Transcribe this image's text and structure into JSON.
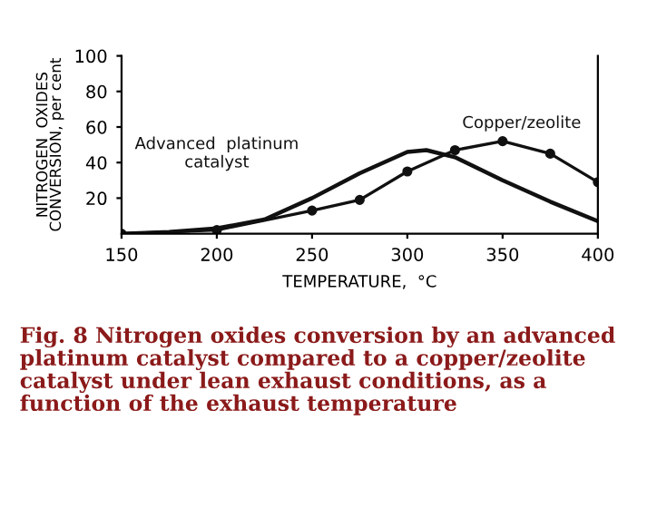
{
  "chart_data": {
    "type": "line",
    "xlabel": "TEMPERATURE,  °C",
    "ylabel": "NITROGEN  OXIDES\nCONVERSION, per cent",
    "xlim": [
      150,
      400
    ],
    "ylim": [
      0,
      100
    ],
    "xticks": [
      150,
      200,
      250,
      300,
      350,
      400
    ],
    "yticks": [
      20,
      40,
      60,
      80,
      100
    ],
    "grid": false,
    "legend": false,
    "series": [
      {
        "name": "Advanced  platinum\ncatalyst",
        "color": "#111111",
        "marker": "none",
        "x": [
          150,
          175,
          200,
          225,
          250,
          275,
          300,
          310,
          325,
          350,
          375,
          400
        ],
        "values": [
          0,
          1,
          3,
          8,
          20,
          34,
          46,
          47,
          43,
          30,
          18,
          7
        ]
      },
      {
        "name": "Copper/zeolite",
        "color": "#111111",
        "marker": "circle",
        "x": [
          150,
          200,
          250,
          275,
          300,
          325,
          350,
          375,
          400
        ],
        "values": [
          0,
          2,
          13,
          19,
          35,
          47,
          52,
          45,
          29
        ]
      }
    ],
    "annotations": [
      "Fig. 8 Nitrogen oxides conversion by an advanced platinum catalyst compared to a copper/zeolite catalyst under lean exhaust conditions, as a function of the exhaust temperature"
    ]
  }
}
